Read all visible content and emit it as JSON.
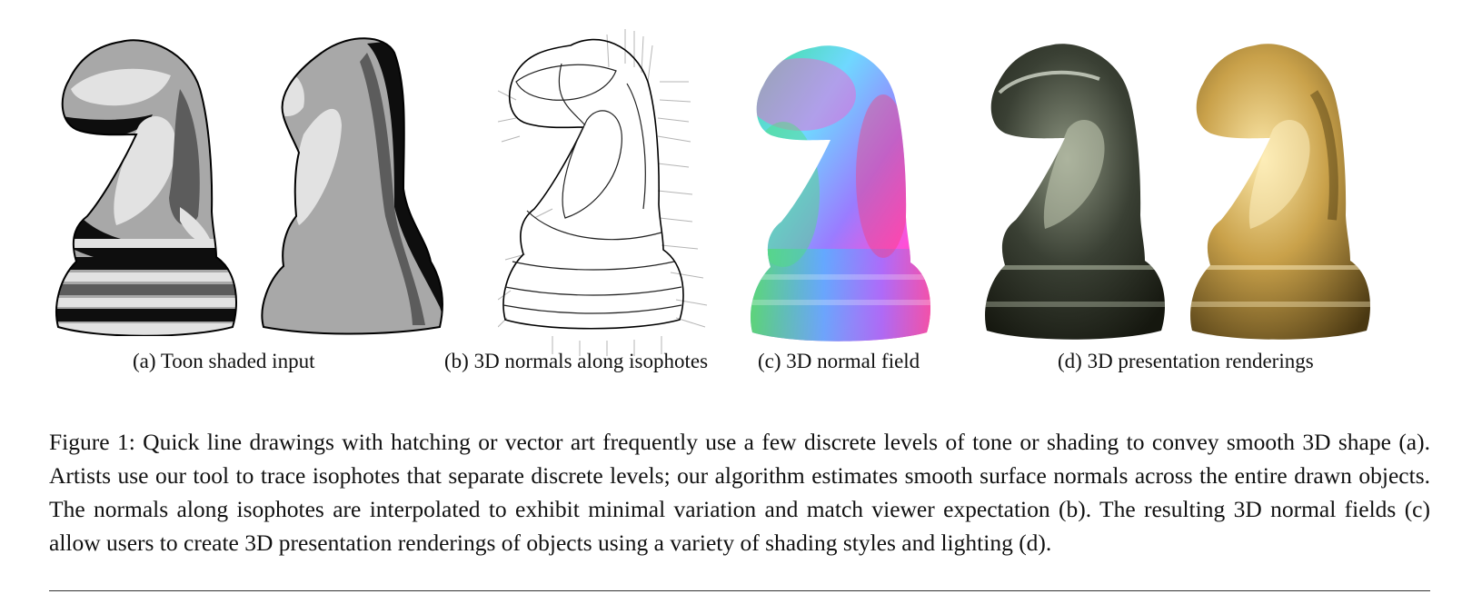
{
  "subfigures": [
    {
      "id": "a",
      "caption": "(a) Toon shaded input"
    },
    {
      "id": "b",
      "caption": "(b) 3D normals along isophotes"
    },
    {
      "id": "c",
      "caption": "(c) 3D normal field"
    },
    {
      "id": "d",
      "caption": "(d) 3D presentation renderings"
    }
  ],
  "figure": {
    "caption": "Figure 1: Quick line drawings with hatching or vector art frequently use a few discrete levels of tone or shading to convey smooth 3D shape (a). Artists use our tool to trace isophotes that separate discrete levels; our algorithm estimates smooth surface normals across the entire drawn objects. The normals along isophotes are interpolated to exhibit minimal variation and match viewer expectation (b). The resulting 3D normal fields (c) allow users to create 3D presentation renderings of objects using a variety of shading styles and lighting (d)."
  },
  "colors": {
    "toon_light": "#e2e2e2",
    "toon_mid": "#a8a8a8",
    "toon_dark": "#5c5c5c",
    "toon_black": "#0e0e0e",
    "metal_dark": "#2e3328",
    "gold": "#b8943a"
  }
}
